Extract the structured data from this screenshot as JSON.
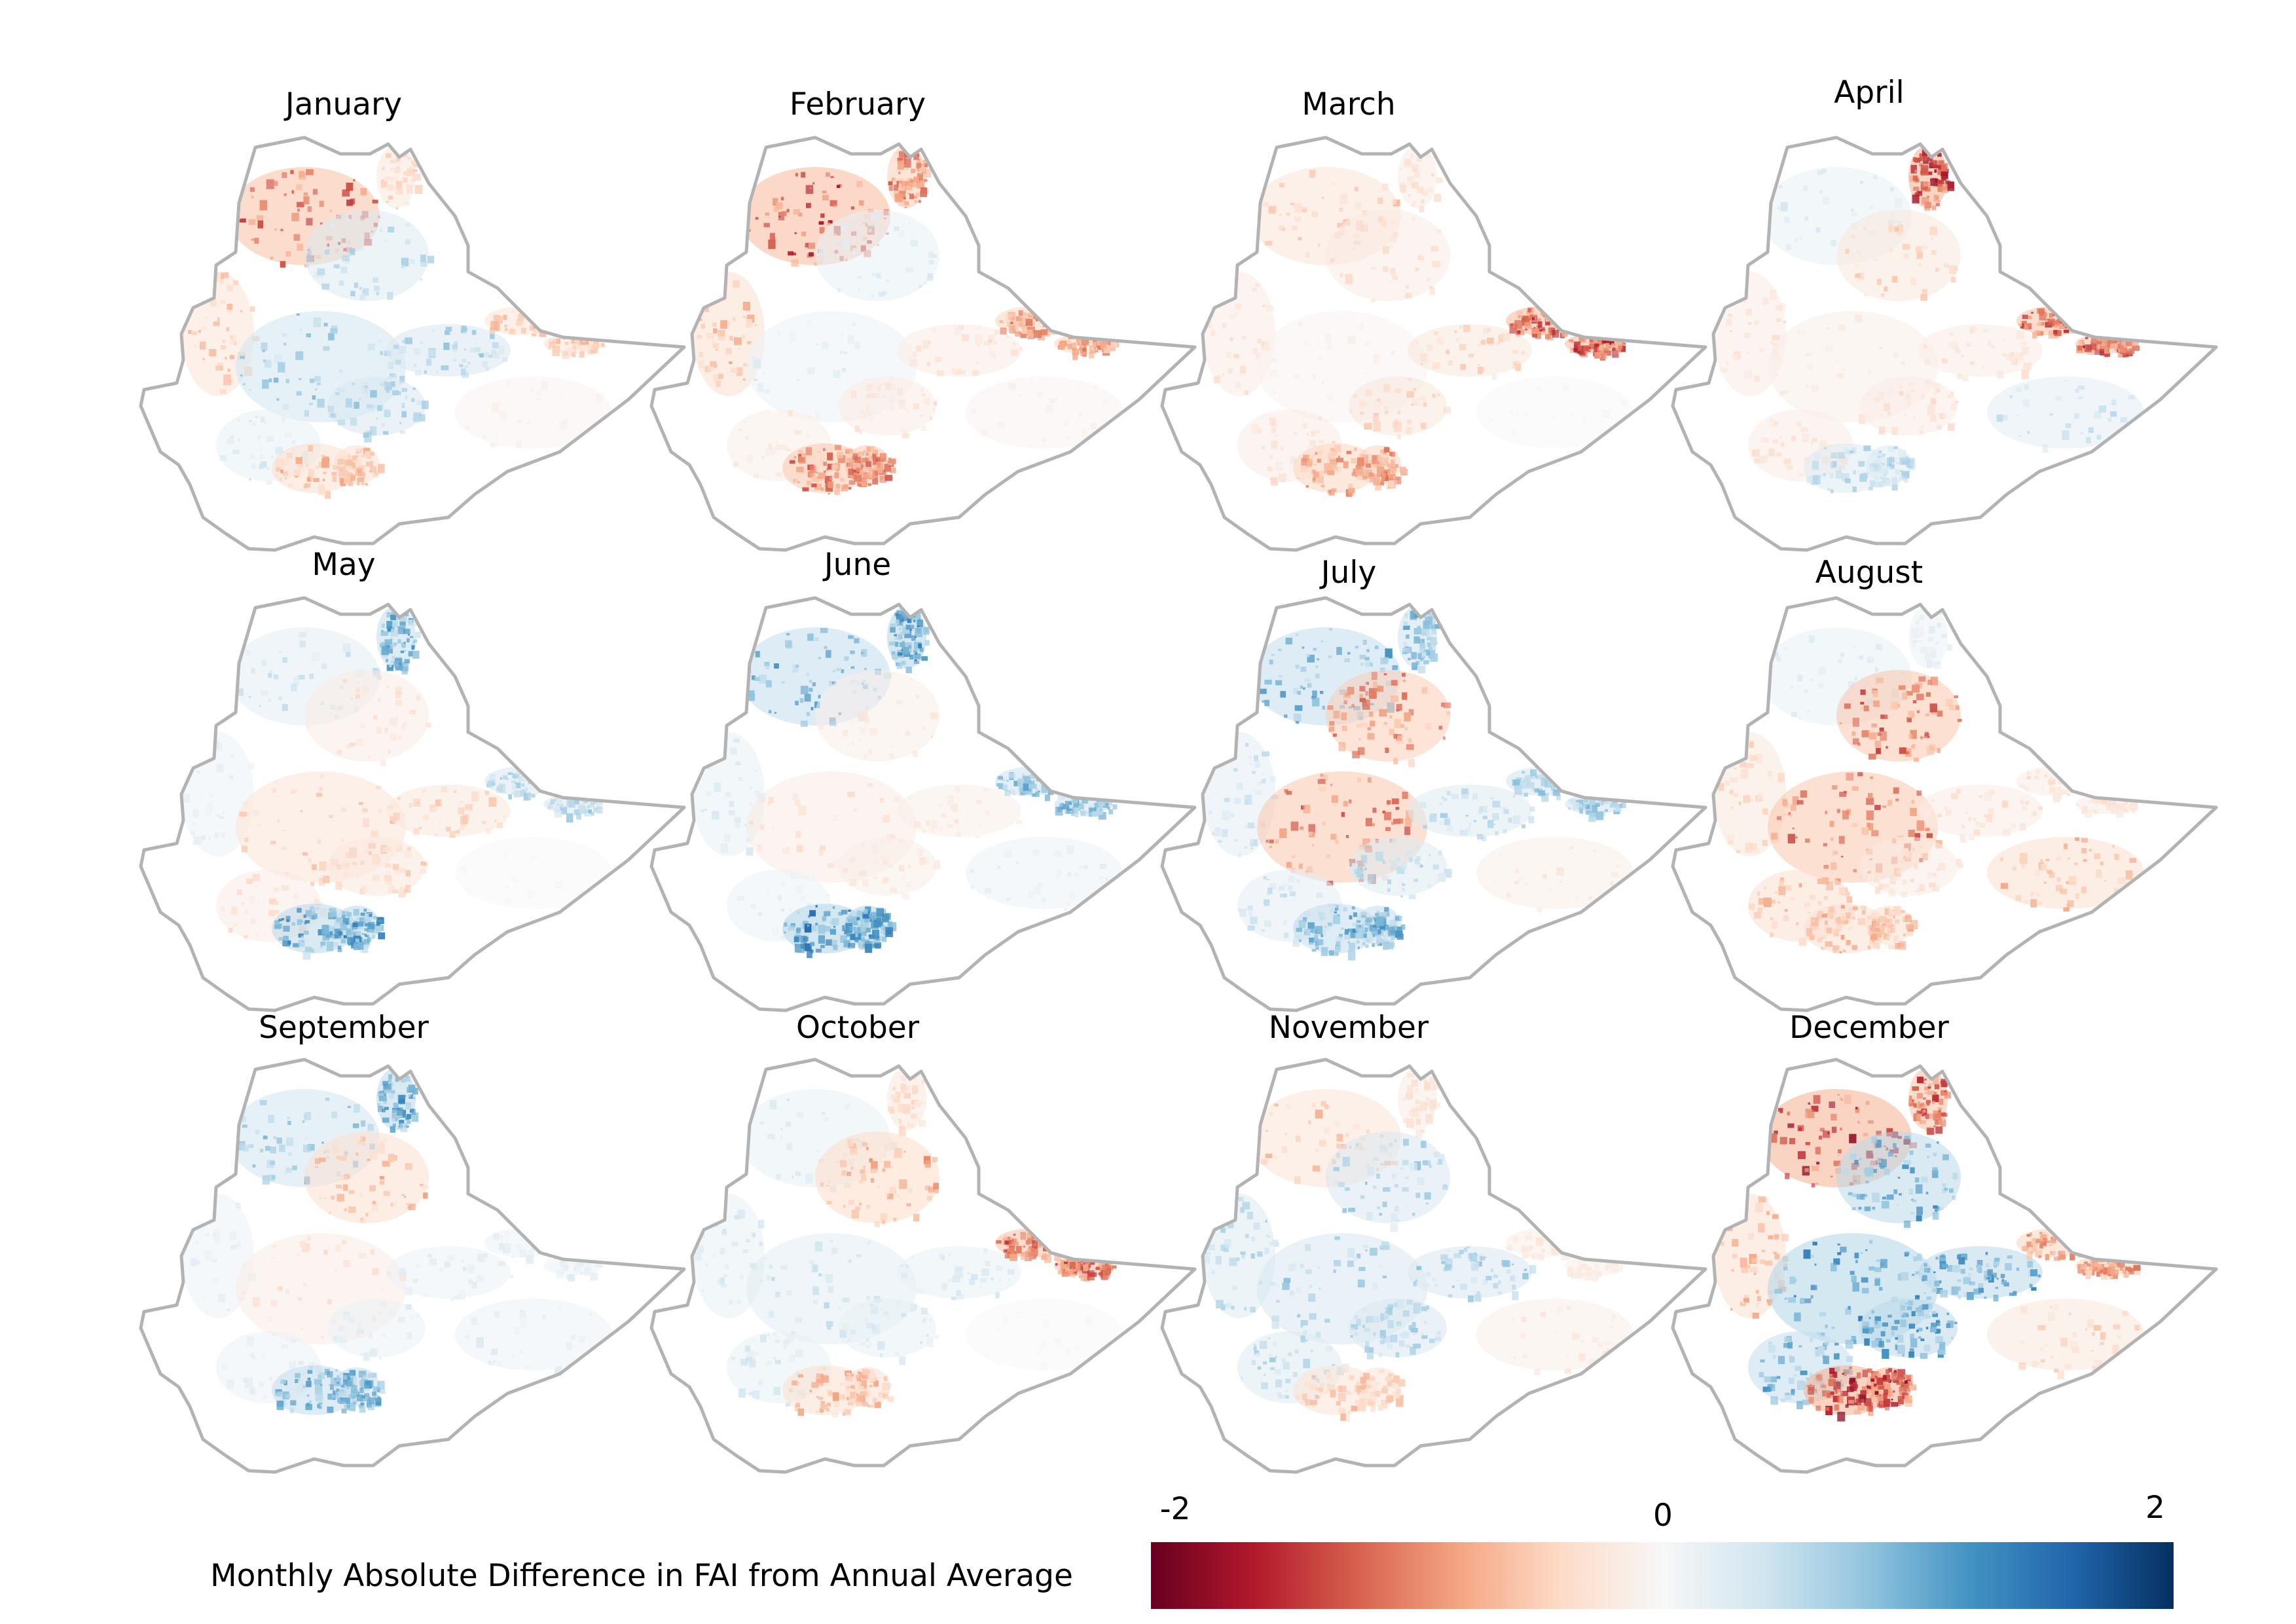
{
  "figure": {
    "legend": {
      "title": "Monthly Absolute Difference in FAI from Annual Average",
      "min_label": "-2",
      "mid_label": "0",
      "max_label": "2",
      "min": -2,
      "max": 2,
      "colors": [
        "#67001f",
        "#b2182b",
        "#d6604d",
        "#f4a582",
        "#fddbc7",
        "#f7f7f7",
        "#d1e5f0",
        "#92c5de",
        "#4393c3",
        "#2166ac",
        "#053061"
      ]
    },
    "panels": [
      {
        "title": "January",
        "pattern": [
          {
            "zone": "northwest",
            "v": -1.1
          },
          {
            "zone": "north-tip",
            "v": -0.4
          },
          {
            "zone": "west",
            "v": -0.5
          },
          {
            "zone": "central-north",
            "v": 0.5
          },
          {
            "zone": "central",
            "v": 0.7
          },
          {
            "zone": "rift",
            "v": 0.6
          },
          {
            "zone": "southwest",
            "v": 0.3
          },
          {
            "zone": "south",
            "v": -0.6
          },
          {
            "zone": "east-arm",
            "v": -0.5
          },
          {
            "zone": "southeast",
            "v": -0.1
          }
        ]
      },
      {
        "title": "February",
        "pattern": [
          {
            "zone": "northwest",
            "v": -1.2
          },
          {
            "zone": "north-tip",
            "v": -0.9
          },
          {
            "zone": "west",
            "v": -0.6
          },
          {
            "zone": "central-north",
            "v": 0.3
          },
          {
            "zone": "central",
            "v": 0.2
          },
          {
            "zone": "rift",
            "v": -0.3
          },
          {
            "zone": "southwest",
            "v": -0.2
          },
          {
            "zone": "south",
            "v": -1.0
          },
          {
            "zone": "east-arm",
            "v": -0.8
          },
          {
            "zone": "southeast",
            "v": -0.1
          }
        ]
      },
      {
        "title": "March",
        "pattern": [
          {
            "zone": "northwest",
            "v": -0.5
          },
          {
            "zone": "north-tip",
            "v": -0.3
          },
          {
            "zone": "west",
            "v": -0.3
          },
          {
            "zone": "central-north",
            "v": -0.3
          },
          {
            "zone": "central",
            "v": -0.1
          },
          {
            "zone": "rift",
            "v": -0.4
          },
          {
            "zone": "southwest",
            "v": -0.3
          },
          {
            "zone": "south",
            "v": -0.8
          },
          {
            "zone": "east-arm",
            "v": -1.2
          },
          {
            "zone": "southeast",
            "v": 0.0
          }
        ]
      },
      {
        "title": "April",
        "pattern": [
          {
            "zone": "northwest",
            "v": 0.3
          },
          {
            "zone": "north-tip",
            "v": -1.3
          },
          {
            "zone": "west",
            "v": -0.3
          },
          {
            "zone": "central-north",
            "v": -0.4
          },
          {
            "zone": "central",
            "v": -0.2
          },
          {
            "zone": "rift",
            "v": -0.3
          },
          {
            "zone": "southwest",
            "v": -0.3
          },
          {
            "zone": "south",
            "v": 0.5
          },
          {
            "zone": "east-arm",
            "v": -1.1
          },
          {
            "zone": "southeast",
            "v": 0.4
          }
        ]
      },
      {
        "title": "May",
        "pattern": [
          {
            "zone": "northwest",
            "v": 0.4
          },
          {
            "zone": "north-tip",
            "v": 0.9
          },
          {
            "zone": "west",
            "v": 0.2
          },
          {
            "zone": "central-north",
            "v": -0.3
          },
          {
            "zone": "central",
            "v": -0.5
          },
          {
            "zone": "rift",
            "v": -0.4
          },
          {
            "zone": "southwest",
            "v": -0.3
          },
          {
            "zone": "south",
            "v": 1.0
          },
          {
            "zone": "east-arm",
            "v": 0.6
          },
          {
            "zone": "southeast",
            "v": 0.0
          }
        ]
      },
      {
        "title": "June",
        "pattern": [
          {
            "zone": "northwest",
            "v": 0.9
          },
          {
            "zone": "north-tip",
            "v": 1.1
          },
          {
            "zone": "west",
            "v": 0.3
          },
          {
            "zone": "central-north",
            "v": -0.2
          },
          {
            "zone": "central",
            "v": -0.3
          },
          {
            "zone": "rift",
            "v": -0.2
          },
          {
            "zone": "southwest",
            "v": 0.2
          },
          {
            "zone": "south",
            "v": 1.1
          },
          {
            "zone": "east-arm",
            "v": 0.8
          },
          {
            "zone": "southeast",
            "v": 0.2
          }
        ]
      },
      {
        "title": "July",
        "pattern": [
          {
            "zone": "northwest",
            "v": 0.9
          },
          {
            "zone": "north-tip",
            "v": 0.8
          },
          {
            "zone": "west",
            "v": 0.4
          },
          {
            "zone": "central-north",
            "v": -0.9
          },
          {
            "zone": "central",
            "v": -1.0
          },
          {
            "zone": "rift",
            "v": 0.5
          },
          {
            "zone": "southwest",
            "v": 0.4
          },
          {
            "zone": "south",
            "v": 0.9
          },
          {
            "zone": "east-arm",
            "v": 0.7
          },
          {
            "zone": "southeast",
            "v": -0.2
          }
        ]
      },
      {
        "title": "August",
        "pattern": [
          {
            "zone": "northwest",
            "v": 0.3
          },
          {
            "zone": "north-tip",
            "v": 0.2
          },
          {
            "zone": "west",
            "v": -0.4
          },
          {
            "zone": "central-north",
            "v": -1.0
          },
          {
            "zone": "central",
            "v": -1.0
          },
          {
            "zone": "rift",
            "v": -0.3
          },
          {
            "zone": "southwest",
            "v": -0.6
          },
          {
            "zone": "south",
            "v": -0.6
          },
          {
            "zone": "east-arm",
            "v": -0.3
          },
          {
            "zone": "southeast",
            "v": -0.6
          }
        ]
      },
      {
        "title": "September",
        "pattern": [
          {
            "zone": "northwest",
            "v": 0.7
          },
          {
            "zone": "north-tip",
            "v": 1.0
          },
          {
            "zone": "west",
            "v": 0.2
          },
          {
            "zone": "central-north",
            "v": -0.6
          },
          {
            "zone": "central",
            "v": -0.3
          },
          {
            "zone": "rift",
            "v": 0.2
          },
          {
            "zone": "southwest",
            "v": 0.2
          },
          {
            "zone": "south",
            "v": 0.9
          },
          {
            "zone": "east-arm",
            "v": 0.2
          },
          {
            "zone": "southeast",
            "v": 0.2
          }
        ]
      },
      {
        "title": "October",
        "pattern": [
          {
            "zone": "northwest",
            "v": 0.3
          },
          {
            "zone": "north-tip",
            "v": -0.4
          },
          {
            "zone": "west",
            "v": 0.3
          },
          {
            "zone": "central-north",
            "v": -0.7
          },
          {
            "zone": "central",
            "v": 0.4
          },
          {
            "zone": "rift",
            "v": 0.3
          },
          {
            "zone": "southwest",
            "v": 0.3
          },
          {
            "zone": "south",
            "v": -0.6
          },
          {
            "zone": "east-arm",
            "v": -1.1
          },
          {
            "zone": "southeast",
            "v": 0.0
          }
        ]
      },
      {
        "title": "November",
        "pattern": [
          {
            "zone": "northwest",
            "v": -0.5
          },
          {
            "zone": "north-tip",
            "v": -0.3
          },
          {
            "zone": "west",
            "v": 0.5
          },
          {
            "zone": "central-north",
            "v": 0.6
          },
          {
            "zone": "central",
            "v": 0.6
          },
          {
            "zone": "rift",
            "v": 0.6
          },
          {
            "zone": "southwest",
            "v": 0.5
          },
          {
            "zone": "south",
            "v": -0.5
          },
          {
            "zone": "east-arm",
            "v": -0.2
          },
          {
            "zone": "southeast",
            "v": -0.2
          }
        ]
      },
      {
        "title": "December",
        "pattern": [
          {
            "zone": "northwest",
            "v": -1.3
          },
          {
            "zone": "north-tip",
            "v": -1.1
          },
          {
            "zone": "west",
            "v": -0.6
          },
          {
            "zone": "central-north",
            "v": 1.0
          },
          {
            "zone": "central",
            "v": 1.1
          },
          {
            "zone": "rift",
            "v": 1.0
          },
          {
            "zone": "southwest",
            "v": 0.9
          },
          {
            "zone": "south",
            "v": -1.3
          },
          {
            "zone": "east-arm",
            "v": -0.8
          },
          {
            "zone": "southeast",
            "v": -0.4
          }
        ]
      }
    ]
  }
}
